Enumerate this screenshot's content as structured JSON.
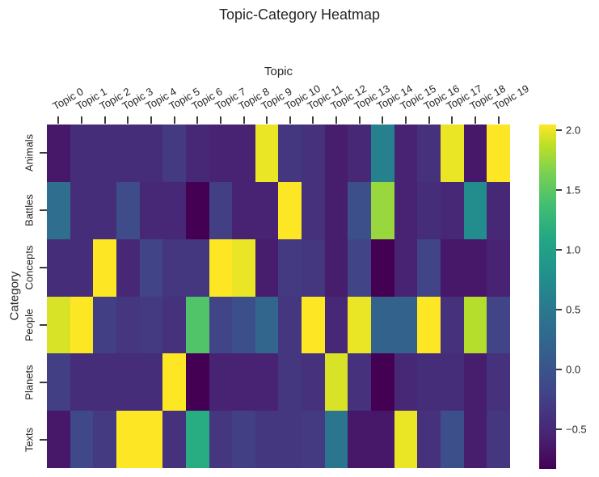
{
  "chart_data": {
    "type": "heatmap",
    "title": "Topic-Category Heatmap",
    "xlabel": "Topic",
    "ylabel": "Category",
    "x": [
      "Topic 0",
      "Topic 1",
      "Topic 2",
      "Topic 3",
      "Topic 4",
      "Topic 5",
      "Topic 6",
      "Topic 7",
      "Topic 8",
      "Topic 9",
      "Topic 10",
      "Topic 11",
      "Topic 12",
      "Topic 13",
      "Topic 14",
      "Topic 15",
      "Topic 16",
      "Topic 17",
      "Topic 18",
      "Topic 19"
    ],
    "y": [
      "Animals",
      "Battles",
      "Concepts",
      "People",
      "Planets",
      "Texts"
    ],
    "values": [
      [
        -0.65,
        -0.45,
        -0.45,
        -0.45,
        -0.45,
        -0.3,
        -0.5,
        -0.55,
        -0.55,
        2.0,
        -0.35,
        -0.4,
        -0.6,
        -0.5,
        0.6,
        -0.55,
        -0.4,
        2.0,
        -0.65,
        2.05
      ],
      [
        0.35,
        -0.45,
        -0.45,
        -0.1,
        -0.5,
        -0.5,
        -0.83,
        -0.25,
        -0.55,
        -0.55,
        2.05,
        -0.4,
        -0.6,
        -0.05,
        1.75,
        -0.55,
        -0.45,
        -0.5,
        0.75,
        -0.5
      ],
      [
        -0.45,
        -0.45,
        2.05,
        -0.5,
        -0.2,
        -0.35,
        -0.35,
        2.05,
        2.0,
        -0.6,
        -0.3,
        -0.35,
        -0.6,
        -0.2,
        -0.83,
        -0.55,
        -0.2,
        -0.65,
        -0.65,
        -0.55
      ],
      [
        1.95,
        2.05,
        -0.25,
        -0.35,
        -0.3,
        -0.4,
        1.45,
        -0.2,
        -0.05,
        0.25,
        -0.35,
        2.05,
        -0.5,
        2.0,
        0.2,
        0.2,
        2.05,
        -0.4,
        1.85,
        -0.2
      ],
      [
        -0.25,
        -0.45,
        -0.45,
        -0.45,
        -0.45,
        2.05,
        -0.83,
        -0.55,
        -0.55,
        -0.55,
        -0.35,
        -0.4,
        1.95,
        -0.4,
        -0.83,
        -0.5,
        -0.45,
        -0.45,
        -0.6,
        -0.4
      ],
      [
        -0.65,
        -0.15,
        -0.3,
        2.05,
        2.05,
        -0.4,
        1.15,
        -0.35,
        -0.25,
        -0.35,
        -0.35,
        -0.3,
        0.45,
        -0.65,
        -0.65,
        2.0,
        -0.4,
        -0.05,
        -0.6,
        -0.35
      ]
    ],
    "colormap": "viridis",
    "vmin": -0.83,
    "vmax": 2.05,
    "colorbar": {
      "ticks": [
        2.0,
        1.5,
        1.0,
        0.5,
        0.0,
        -0.5
      ],
      "tick_labels": [
        "2.0",
        "1.5",
        "1.0",
        "0.5",
        "0.0",
        "−0.5"
      ]
    },
    "grid": false,
    "legend": "colorbar-right"
  }
}
